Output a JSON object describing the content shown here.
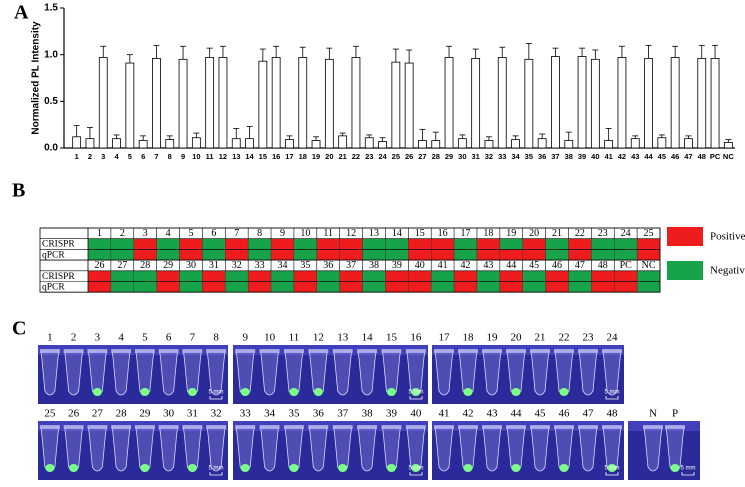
{
  "panel_labels": [
    "A",
    "B",
    "C"
  ],
  "chart_data": {
    "type": "bar",
    "ylabel": "Normalized PL Intensity",
    "categories": [
      "1",
      "2",
      "3",
      "4",
      "5",
      "6",
      "7",
      "8",
      "9",
      "10",
      "11",
      "12",
      "13",
      "14",
      "15",
      "16",
      "17",
      "18",
      "19",
      "20",
      "21",
      "22",
      "23",
      "24",
      "25",
      "26",
      "27",
      "28",
      "29",
      "30",
      "31",
      "32",
      "33",
      "34",
      "35",
      "36",
      "37",
      "38",
      "39",
      "40",
      "41",
      "42",
      "43",
      "44",
      "45",
      "46",
      "47",
      "48",
      "PC",
      "NC"
    ],
    "values": [
      0.12,
      0.1,
      0.97,
      0.1,
      0.91,
      0.08,
      0.96,
      0.09,
      0.95,
      0.11,
      0.97,
      0.97,
      0.1,
      0.1,
      0.93,
      0.97,
      0.09,
      0.97,
      0.08,
      0.95,
      0.13,
      0.97,
      0.11,
      0.07,
      0.92,
      0.91,
      0.08,
      0.08,
      0.97,
      0.1,
      0.96,
      0.08,
      0.97,
      0.09,
      0.95,
      0.1,
      0.98,
      0.08,
      0.98,
      0.95,
      0.08,
      0.97,
      0.1,
      0.96,
      0.11,
      0.97,
      0.1,
      0.96,
      0.96,
      0.06
    ],
    "errors": [
      0.12,
      0.12,
      0.12,
      0.04,
      0.09,
      0.05,
      0.14,
      0.04,
      0.14,
      0.05,
      0.1,
      0.12,
      0.11,
      0.13,
      0.13,
      0.12,
      0.04,
      0.11,
      0.04,
      0.12,
      0.03,
      0.12,
      0.03,
      0.04,
      0.14,
      0.14,
      0.12,
      0.09,
      0.12,
      0.04,
      0.1,
      0.04,
      0.11,
      0.04,
      0.17,
      0.05,
      0.09,
      0.09,
      0.09,
      0.1,
      0.13,
      0.12,
      0.03,
      0.14,
      0.03,
      0.12,
      0.03,
      0.14,
      0.14,
      0.03
    ],
    "color": "#ffffff",
    "ylim": [
      0,
      1.5
    ],
    "yticks": [
      {
        "value": 0,
        "label": "0.0"
      },
      0.5,
      {
        "value": 1,
        "label": "1.0"
      },
      1.5
    ]
  },
  "table": {
    "row_labels": [
      "CRISPR",
      "qPCR"
    ],
    "legend": [
      {
        "name": "Positive",
        "color": "#ee1c1c"
      },
      {
        "name": "Negative",
        "color": "#17a34a"
      }
    ],
    "halves": [
      {
        "columns": [
          "1",
          "2",
          "3",
          "4",
          "5",
          "6",
          "7",
          "8",
          "9",
          "10",
          "11",
          "12",
          "13",
          "14",
          "15",
          "16",
          "17",
          "18",
          "19",
          "20",
          "21",
          "22",
          "23",
          "24",
          "25"
        ],
        "rows": [
          [
            "Negative",
            "Negative",
            "Positive",
            "Negative",
            "Positive",
            "Negative",
            "Positive",
            "Negative",
            "Positive",
            "Negative",
            "Positive",
            "Positive",
            "Negative",
            "Negative",
            "Positive",
            "Positive",
            "Negative",
            "Positive",
            "Negative",
            "Positive",
            "Negative",
            "Positive",
            "Negative",
            "Negative",
            "Positive"
          ],
          [
            "Negative",
            "Negative",
            "Positive",
            "Negative",
            "Positive",
            "Negative",
            "Positive",
            "Negative",
            "Positive",
            "Negative",
            "Positive",
            "Positive",
            "Negative",
            "Negative",
            "Positive",
            "Positive",
            "Negative",
            "Positive",
            "Positive",
            "Positive",
            "Negative",
            "Positive",
            "Negative",
            "Negative",
            "Positive"
          ]
        ]
      },
      {
        "columns": [
          "26",
          "27",
          "28",
          "29",
          "30",
          "31",
          "32",
          "33",
          "34",
          "35",
          "36",
          "37",
          "38",
          "39",
          "40",
          "41",
          "42",
          "43",
          "44",
          "45",
          "46",
          "47",
          "48",
          "PC",
          "NC"
        ],
        "rows": [
          [
            "Positive",
            "Negative",
            "Negative",
            "Positive",
            "Negative",
            "Positive",
            "Negative",
            "Positive",
            "Negative",
            "Positive",
            "Negative",
            "Positive",
            "Negative",
            "Positive",
            "Positive",
            "Negative",
            "Positive",
            "Negative",
            "Positive",
            "Negative",
            "Positive",
            "Negative",
            "Positive",
            "Positive",
            "Negative"
          ],
          [
            "Positive",
            "Negative",
            "Negative",
            "Positive",
            "Negative",
            "Positive",
            "Negative",
            "Positive",
            "Negative",
            "Positive",
            "Negative",
            "Positive",
            "Negative",
            "Positive",
            "Positive",
            "Negative",
            "Positive",
            "Negative",
            "Positive",
            "Negative",
            "Positive",
            "Negative",
            "Positive",
            "Positive",
            "Negative"
          ]
        ]
      }
    ]
  },
  "photos": {
    "scale_bar": "5 mm",
    "panels": [
      {
        "labels": [
          "1",
          "2",
          "3",
          "4",
          "5",
          "6",
          "7",
          "8"
        ],
        "fluorescence": [
          "Negative",
          "Negative",
          "Positive",
          "Negative",
          "Positive",
          "Negative",
          "Positive",
          "Negative"
        ]
      },
      {
        "labels": [
          "9",
          "10",
          "11",
          "12",
          "13",
          "14",
          "15",
          "16"
        ],
        "fluorescence": [
          "Positive",
          "Negative",
          "Positive",
          "Positive",
          "Negative",
          "Negative",
          "Positive",
          "Positive"
        ]
      },
      {
        "labels": [
          "17",
          "18",
          "19",
          "20",
          "21",
          "22",
          "23",
          "24"
        ],
        "fluorescence": [
          "Negative",
          "Positive",
          "Negative",
          "Positive",
          "Negative",
          "Positive",
          "Negative",
          "Negative"
        ]
      },
      {
        "labels": [
          "25",
          "26",
          "27",
          "28",
          "29",
          "30",
          "31",
          "32"
        ],
        "fluorescence": [
          "Positive",
          "Positive",
          "Negative",
          "Negative",
          "Positive",
          "Negative",
          "Positive",
          "Negative"
        ]
      },
      {
        "labels": [
          "33",
          "34",
          "35",
          "36",
          "37",
          "38",
          "39",
          "40"
        ],
        "fluorescence": [
          "Positive",
          "Negative",
          "Positive",
          "Negative",
          "Positive",
          "Negative",
          "Positive",
          "Positive"
        ]
      },
      {
        "labels": [
          "41",
          "42",
          "43",
          "44",
          "45",
          "46",
          "47",
          "48"
        ],
        "fluorescence": [
          "Negative",
          "Positive",
          "Negative",
          "Positive",
          "Negative",
          "Positive",
          "Negative",
          "Positive"
        ]
      },
      {
        "labels": [
          "N",
          "P"
        ],
        "fluorescence": [
          "Negative",
          "Positive"
        ]
      }
    ]
  }
}
